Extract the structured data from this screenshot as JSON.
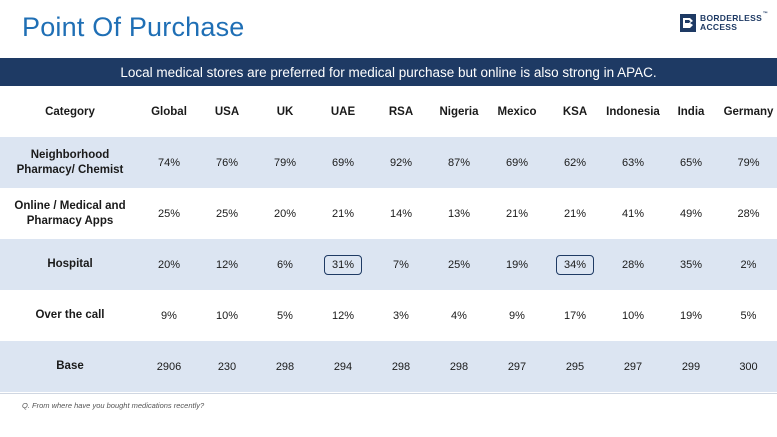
{
  "title": "Point Of Purchase",
  "logo": {
    "line1": "BORDERLESS",
    "line2": "ACCESS",
    "tm": "™",
    "mark_color": "#1e3a64"
  },
  "banner": "Local medical stores are preferred for medical purchase but online is also strong in APAC.",
  "colors": {
    "title": "#1f6fb5",
    "banner_bg": "#1e3a64",
    "row_shade": "#dce5f2"
  },
  "table": {
    "columns": [
      "Category",
      "Global",
      "USA",
      "UK",
      "UAE",
      "RSA",
      "Nigeria",
      "Mexico",
      "KSA",
      "Indonesia",
      "India",
      "Germany"
    ],
    "rows": [
      {
        "label_line1": "Neighborhood",
        "label_line2": "Pharmacy/ Chemist",
        "values": [
          "74%",
          "76%",
          "79%",
          "69%",
          "92%",
          "87%",
          "69%",
          "62%",
          "63%",
          "65%",
          "79%"
        ]
      },
      {
        "label_line1": "Online / Medical and",
        "label_line2": "Pharmacy Apps",
        "values": [
          "25%",
          "25%",
          "20%",
          "21%",
          "14%",
          "13%",
          "21%",
          "21%",
          "41%",
          "49%",
          "28%"
        ]
      },
      {
        "label_line1": "Hospital",
        "label_line2": "",
        "values": [
          "20%",
          "12%",
          "6%",
          "31%",
          "7%",
          "25%",
          "19%",
          "34%",
          "28%",
          "35%",
          "2%"
        ]
      },
      {
        "label_line1": "Over the call",
        "label_line2": "",
        "values": [
          "9%",
          "10%",
          "5%",
          "12%",
          "3%",
          "4%",
          "9%",
          "17%",
          "10%",
          "19%",
          "5%"
        ]
      },
      {
        "label_line1": "Base",
        "label_line2": "",
        "values": [
          "2906",
          "230",
          "298",
          "294",
          "298",
          "298",
          "297",
          "295",
          "297",
          "299",
          "300"
        ]
      }
    ],
    "highlighted": [
      "Hospital-UAE",
      "Hospital-KSA"
    ]
  },
  "footnote": "Q. From where have you bought medications recently?"
}
